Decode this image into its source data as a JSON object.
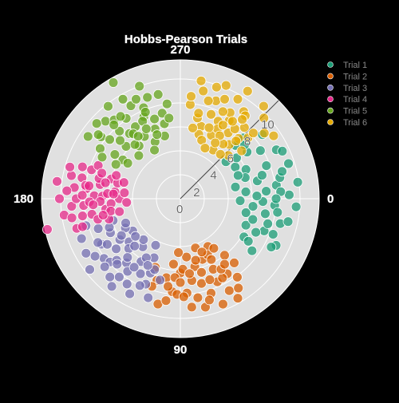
{
  "chart_data": {
    "type": "scatter",
    "projection": "polar",
    "title": "Hobbs-Pearson Trials",
    "background": "#000000",
    "polar_background": "#e0e0e0",
    "grid": true,
    "grid_color": "#ffffff",
    "legend_placement": "top-right",
    "angular_axis": {
      "direction": "clockwise",
      "rotation_deg": 0,
      "ticks": [
        0,
        90,
        180,
        270
      ],
      "tick_labels": [
        "0",
        "90",
        "180",
        "270"
      ]
    },
    "radial_axis": {
      "range": [
        0,
        11.6
      ],
      "ticks": [
        0,
        2,
        4,
        6,
        8,
        10
      ],
      "tick_labels": [
        "0",
        "2",
        "4",
        "6",
        "8",
        "10"
      ],
      "angle_deg": -45
    },
    "marker_opacity": 0.75,
    "marker_edge_color": "#ffffff",
    "series": [
      {
        "name": "Trial 1",
        "color": "#1b9e77",
        "points": [
          [
            6.9,
            2
          ],
          [
            7.2,
            10
          ],
          [
            8.1,
            -8
          ],
          [
            6.0,
            -24
          ],
          [
            7.5,
            21
          ],
          [
            9.1,
            -2
          ],
          [
            5.6,
            12
          ],
          [
            6.6,
            -13
          ],
          [
            7.8,
            -31
          ],
          [
            8.6,
            14
          ],
          [
            4.9,
            -39
          ],
          [
            6.2,
            31
          ],
          [
            9.5,
            -18
          ],
          [
            7.9,
            4
          ],
          [
            5.5,
            -6
          ],
          [
            8.9,
            26
          ],
          [
            6.4,
            -44
          ],
          [
            7.1,
            -16
          ],
          [
            9.9,
            -8
          ],
          [
            5.9,
            22
          ],
          [
            8.4,
            -4
          ],
          [
            7.4,
            36
          ],
          [
            6.8,
            -35
          ],
          [
            8.2,
            8
          ],
          [
            9.0,
            -27
          ],
          [
            5.3,
            -30
          ],
          [
            7.6,
            16
          ],
          [
            8.5,
            -12
          ],
          [
            6.1,
            6
          ],
          [
            9.7,
            4
          ],
          [
            7.3,
            -44
          ],
          [
            5.7,
            -18
          ],
          [
            8.7,
            -38
          ],
          [
            6.9,
            24
          ],
          [
            8.0,
            0
          ],
          [
            5.0,
            2
          ],
          [
            9.2,
            12
          ],
          [
            6.4,
            -2
          ],
          [
            7.7,
            -21
          ],
          [
            4.7,
            -12
          ],
          [
            8.3,
            21
          ],
          [
            6.7,
            32
          ],
          [
            9.4,
            -25
          ],
          [
            5.8,
            -36
          ],
          [
            7.2,
            -5
          ],
          [
            8.8,
            -15
          ],
          [
            6.3,
            16
          ],
          [
            7.0,
            -40
          ],
          [
            5.2,
            -22
          ],
          [
            8.6,
            28
          ]
        ]
      },
      {
        "name": "Trial 2",
        "color": "#d95f02",
        "points": [
          [
            7.4,
            58
          ],
          [
            8.3,
            72
          ],
          [
            6.5,
            65
          ],
          [
            9.1,
            84
          ],
          [
            5.8,
            78
          ],
          [
            7.0,
            50
          ],
          [
            6.2,
            90
          ],
          [
            8.7,
            62
          ],
          [
            5.4,
            70
          ],
          [
            7.8,
            95
          ],
          [
            6.9,
            82
          ],
          [
            4.6,
            60
          ],
          [
            9.5,
            68
          ],
          [
            7.3,
            76
          ],
          [
            5.9,
            88
          ],
          [
            8.1,
            54
          ],
          [
            6.7,
            100
          ],
          [
            4.9,
            84
          ],
          [
            7.6,
            66
          ],
          [
            9.0,
            102
          ],
          [
            6.0,
            52
          ],
          [
            8.4,
            80
          ],
          [
            5.5,
            96
          ],
          [
            7.1,
            106
          ],
          [
            6.4,
            74
          ],
          [
            8.9,
            57
          ],
          [
            4.3,
            73
          ],
          [
            7.9,
            86
          ],
          [
            6.6,
            94
          ],
          [
            5.2,
            64
          ],
          [
            9.3,
            77
          ],
          [
            7.5,
            62
          ],
          [
            6.1,
            110
          ],
          [
            8.0,
            92
          ],
          [
            5.0,
            56
          ],
          [
            7.2,
            70
          ],
          [
            6.8,
            60
          ],
          [
            8.6,
            98
          ],
          [
            4.5,
            92
          ],
          [
            7.7,
            108
          ],
          [
            5.7,
            63
          ],
          [
            9.6,
            60
          ],
          [
            6.3,
            83
          ],
          [
            8.2,
            88
          ],
          [
            5.3,
            76
          ],
          [
            7.0,
            90
          ],
          [
            6.6,
            56
          ],
          [
            4.8,
            68
          ],
          [
            8.8,
            74
          ],
          [
            7.4,
            98
          ]
        ]
      },
      {
        "name": "Trial 3",
        "color": "#7570b3",
        "points": [
          [
            7.0,
            130
          ],
          [
            8.1,
            142
          ],
          [
            6.2,
            122
          ],
          [
            5.6,
            140
          ],
          [
            7.6,
            150
          ],
          [
            8.8,
            132
          ],
          [
            6.7,
            112
          ],
          [
            5.1,
            128
          ],
          [
            7.3,
            160
          ],
          [
            9.1,
            150
          ],
          [
            6.0,
            136
          ],
          [
            8.4,
            122
          ],
          [
            5.4,
            114
          ],
          [
            7.9,
            138
          ],
          [
            6.5,
            154
          ],
          [
            4.8,
            146
          ],
          [
            8.9,
            158
          ],
          [
            7.1,
            118
          ],
          [
            5.9,
            162
          ],
          [
            6.8,
            142
          ],
          [
            7.5,
            126
          ],
          [
            8.6,
            146
          ],
          [
            5.2,
            152
          ],
          [
            6.3,
            110
          ],
          [
            9.6,
            142
          ],
          [
            7.7,
            112
          ],
          [
            4.6,
            132
          ],
          [
            8.2,
            164
          ],
          [
            6.1,
            146
          ],
          [
            7.4,
            136
          ],
          [
            5.7,
            120
          ],
          [
            9.3,
            128
          ],
          [
            6.6,
            132
          ],
          [
            8.0,
            115
          ],
          [
            5.0,
            156
          ],
          [
            7.2,
            148
          ],
          [
            6.9,
            124
          ],
          [
            8.5,
            138
          ],
          [
            4.4,
            118
          ],
          [
            7.8,
            152
          ],
          [
            5.5,
            134
          ],
          [
            9.0,
            118
          ],
          [
            6.4,
            158
          ],
          [
            7.0,
            104
          ],
          [
            5.8,
            148
          ],
          [
            8.3,
            128
          ],
          [
            6.2,
            116
          ],
          [
            4.9,
            140
          ],
          [
            7.6,
            134
          ],
          [
            8.7,
            108
          ]
        ]
      },
      {
        "name": "Trial 4",
        "color": "#e7298a",
        "points": [
          [
            7.2,
            182
          ],
          [
            8.4,
            192
          ],
          [
            6.3,
            172
          ],
          [
            5.5,
            186
          ],
          [
            9.1,
            176
          ],
          [
            7.8,
            198
          ],
          [
            6.8,
            190
          ],
          [
            8.9,
            186
          ],
          [
            5.1,
            180
          ],
          [
            7.5,
            170
          ],
          [
            6.0,
            196
          ],
          [
            9.5,
            184
          ],
          [
            8.1,
            176
          ],
          [
            5.8,
            176
          ],
          [
            7.0,
            194
          ],
          [
            9.8,
            172
          ],
          [
            6.5,
            182
          ],
          [
            8.6,
            198
          ],
          [
            4.7,
            186
          ],
          [
            7.9,
            186
          ],
          [
            6.2,
            164
          ],
          [
            9.3,
            192
          ],
          [
            5.4,
            194
          ],
          [
            8.3,
            170
          ],
          [
            7.4,
            202
          ],
          [
            6.7,
            178
          ],
          [
            10.1,
            180
          ],
          [
            5.9,
            170
          ],
          [
            8.0,
            188
          ],
          [
            6.9,
            198
          ],
          [
            4.5,
            176
          ],
          [
            9.0,
            164
          ],
          [
            7.6,
            178
          ],
          [
            5.2,
            168
          ],
          [
            8.7,
            180
          ],
          [
            6.4,
            192
          ],
          [
            9.6,
            196
          ],
          [
            7.1,
            166
          ],
          [
            5.7,
            200
          ],
          [
            8.5,
            164
          ],
          [
            6.1,
            184
          ],
          [
            10.4,
            188
          ],
          [
            7.7,
            188
          ],
          [
            4.9,
            196
          ],
          [
            9.2,
            170
          ],
          [
            6.6,
            168
          ],
          [
            8.2,
            182
          ],
          [
            5.6,
            184
          ],
          [
            7.3,
            176
          ],
          [
            11.4,
            167
          ]
        ]
      },
      {
        "name": "Trial 5",
        "color": "#66a61e",
        "points": [
          [
            6.9,
            232
          ],
          [
            8.1,
            236
          ],
          [
            7.5,
            246
          ],
          [
            6.3,
            224
          ],
          [
            8.8,
            242
          ],
          [
            5.6,
            232
          ],
          [
            7.0,
            252
          ],
          [
            9.0,
            226
          ],
          [
            6.0,
            240
          ],
          [
            8.4,
            218
          ],
          [
            7.6,
            228
          ],
          [
            5.2,
            246
          ],
          [
            8.9,
            252
          ],
          [
            6.6,
            214
          ],
          [
            9.6,
            240
          ],
          [
            7.3,
            258
          ],
          [
            5.8,
            214
          ],
          [
            8.6,
            230
          ],
          [
            6.4,
            258
          ],
          [
            7.9,
            212
          ],
          [
            5.0,
            226
          ],
          [
            9.4,
            222
          ],
          [
            7.1,
            238
          ],
          [
            6.2,
            250
          ],
          [
            8.2,
            248
          ],
          [
            5.4,
            256
          ],
          [
            7.7,
            220
          ],
          [
            9.8,
            232
          ],
          [
            6.8,
            262
          ],
          [
            8.0,
            262
          ],
          [
            5.9,
            230
          ],
          [
            7.4,
            208
          ],
          [
            9.1,
            246
          ],
          [
            6.1,
            208
          ],
          [
            8.5,
            234
          ],
          [
            5.3,
            214
          ],
          [
            7.2,
            244
          ],
          [
            10.0,
            250
          ],
          [
            6.7,
            234
          ],
          [
            8.3,
            228
          ],
          [
            4.6,
            242
          ],
          [
            7.8,
            248
          ],
          [
            9.3,
            214
          ],
          [
            6.5,
            244
          ],
          [
            8.7,
            218
          ],
          [
            5.7,
            250
          ],
          [
            7.0,
            224
          ],
          [
            11.2,
            240
          ],
          [
            6.3,
            236
          ],
          [
            8.9,
            258
          ]
        ]
      },
      {
        "name": "Trial 6",
        "color": "#e6ab02",
        "points": [
          [
            7.7,
            302
          ],
          [
            8.7,
            290
          ],
          [
            6.3,
            286
          ],
          [
            8.0,
            312
          ],
          [
            9.6,
            300
          ],
          [
            5.4,
            318
          ],
          [
            7.2,
            296
          ],
          [
            8.9,
            322
          ],
          [
            6.8,
            306
          ],
          [
            10.2,
            292
          ],
          [
            5.9,
            296
          ],
          [
            7.6,
            318
          ],
          [
            9.2,
            282
          ],
          [
            6.5,
            322
          ],
          [
            8.3,
            300
          ],
          [
            4.9,
            304
          ],
          [
            7.9,
            276
          ],
          [
            9.7,
            316
          ],
          [
            6.1,
            312
          ],
          [
            8.5,
            286
          ],
          [
            5.6,
            286
          ],
          [
            7.4,
            308
          ],
          [
            9.0,
            306
          ],
          [
            6.9,
            282
          ],
          [
            10.0,
            280
          ],
          [
            5.2,
            290
          ],
          [
            8.1,
            296
          ],
          [
            6.6,
            298
          ],
          [
            9.4,
            326
          ],
          [
            7.3,
            282
          ],
          [
            5.8,
            308
          ],
          [
            8.8,
            308
          ],
          [
            6.4,
            292
          ],
          [
            7.0,
            314
          ],
          [
            10.6,
            302
          ],
          [
            5.0,
            312
          ],
          [
            8.2,
            318
          ],
          [
            6.2,
            302
          ],
          [
            9.1,
            294
          ],
          [
            7.5,
            290
          ],
          [
            4.7,
            296
          ],
          [
            8.6,
            276
          ],
          [
            6.7,
            314
          ],
          [
            9.8,
            288
          ],
          [
            5.5,
            302
          ],
          [
            7.8,
            304
          ],
          [
            6.0,
            280
          ],
          [
            8.4,
            308
          ],
          [
            7.1,
            300
          ],
          [
            10.4,
            312
          ]
        ]
      }
    ]
  }
}
